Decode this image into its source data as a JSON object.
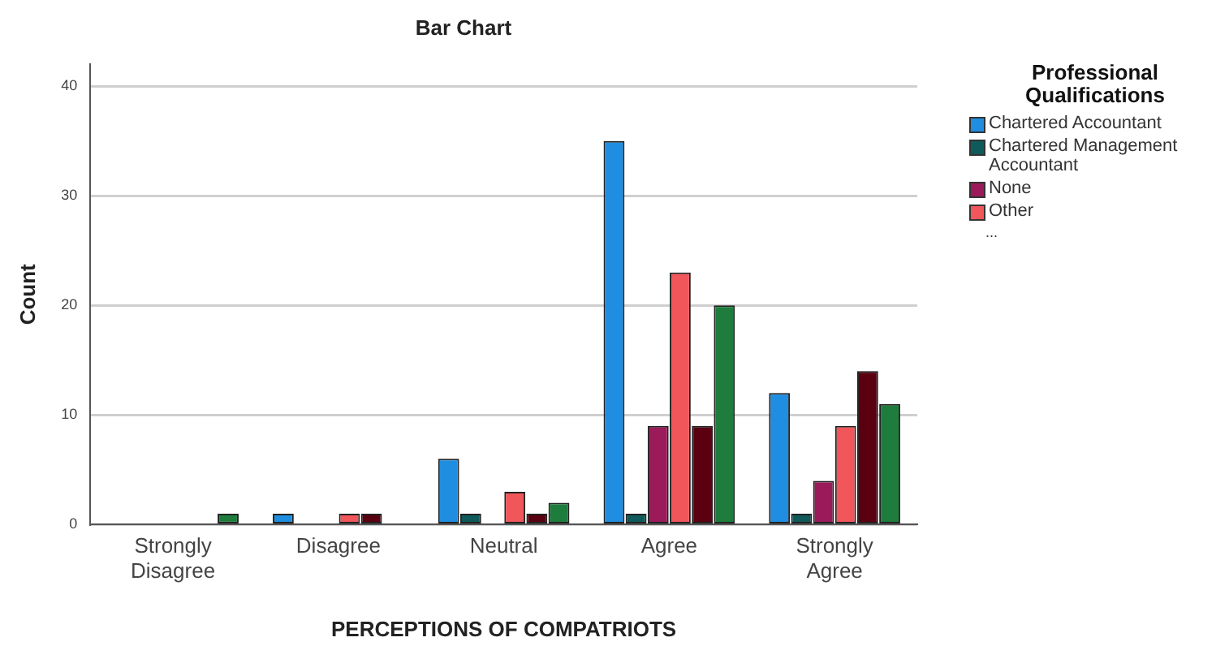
{
  "chart_data": {
    "type": "bar",
    "title": "Bar Chart",
    "xlabel": "PERCEPTIONS OF COMPATRIOTS",
    "ylabel": "Count",
    "legend_title": "Professional Qualifications",
    "categories": [
      "Strongly\nDisagree",
      "Disagree",
      "Neutral",
      "Agree",
      "Strongly\nAgree"
    ],
    "series": [
      {
        "name": "Chartered Accountant",
        "color": "#1f8ee0",
        "values": [
          0,
          1,
          6,
          35,
          12
        ]
      },
      {
        "name": "Chartered Management Accountant",
        "color": "#0f5a5a",
        "values": [
          0,
          0,
          1,
          1,
          1
        ]
      },
      {
        "name": "None",
        "color": "#9b1a5a",
        "values": [
          0,
          0,
          0,
          9,
          4
        ]
      },
      {
        "name": "Other",
        "color": "#f0565a",
        "values": [
          0,
          1,
          3,
          23,
          9
        ]
      },
      {
        "color": "#5a0010",
        "values": [
          0,
          1,
          1,
          9,
          14
        ]
      },
      {
        "color": "#1e7d3c",
        "values": [
          1,
          0,
          2,
          20,
          11
        ]
      }
    ],
    "annotations": [
      "..."
    ],
    "ylim": [
      0,
      42
    ],
    "yticks": [
      0,
      10,
      20,
      30,
      40
    ],
    "grid": "y",
    "legend": "right"
  }
}
